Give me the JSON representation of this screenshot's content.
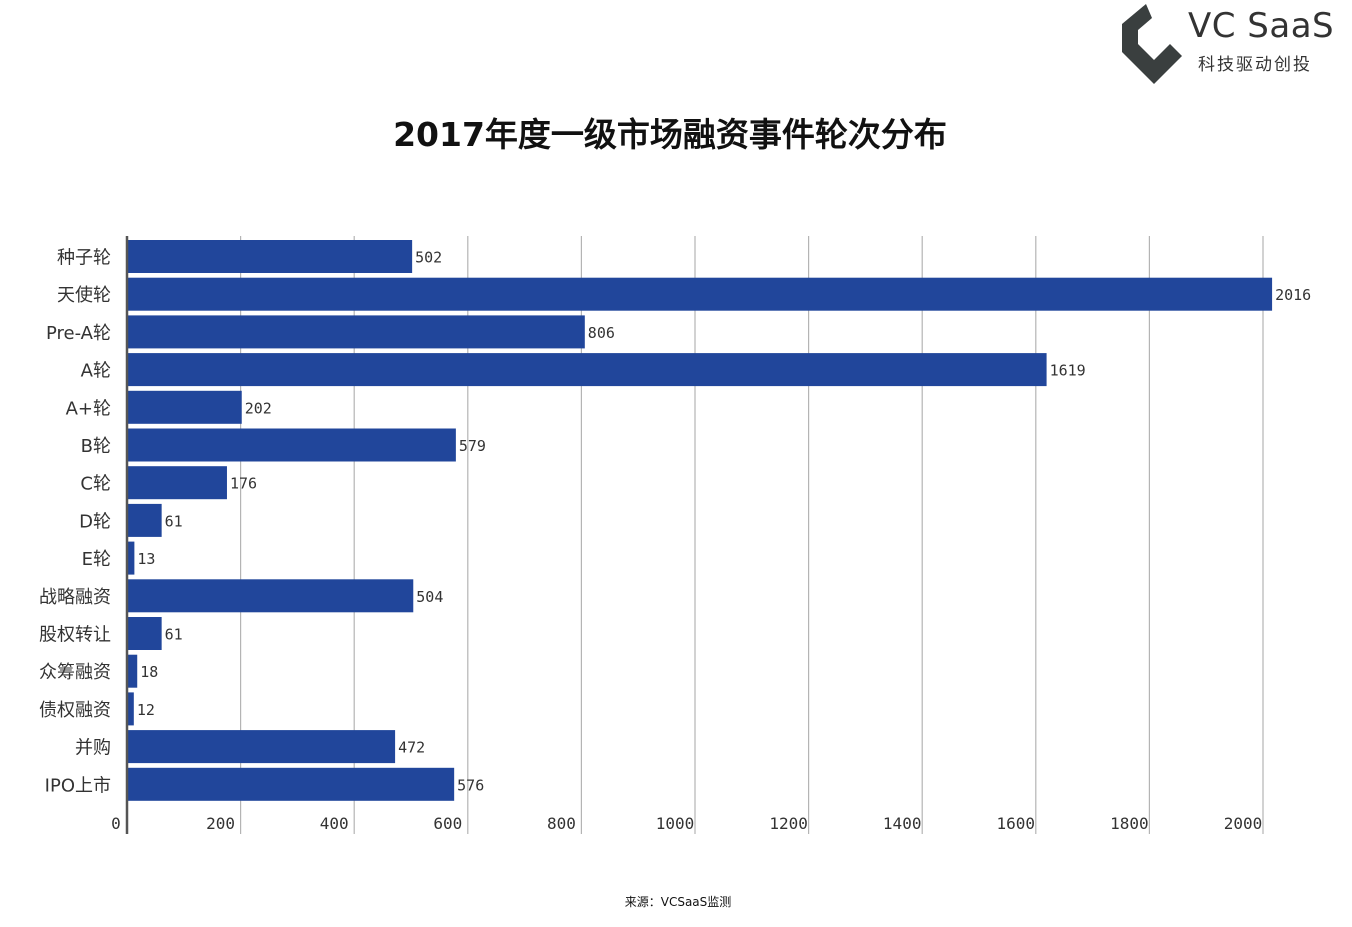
{
  "logo": {
    "name": "VC SaaS",
    "tagline": "科技驱动创投",
    "icon": "vc-saas-logo-icon"
  },
  "colors": {
    "bar": "#21469b",
    "grid": "#b4b4b4",
    "axis": "#555555",
    "text": "#333333",
    "logo": "#3a3f3f"
  },
  "chart_data": {
    "type": "bar",
    "orientation": "horizontal",
    "title": "2017年度一级市场融资事件轮次分布",
    "categories": [
      "种子轮",
      "天使轮",
      "Pre-A轮",
      "A轮",
      "A+轮",
      "B轮",
      "C轮",
      "D轮",
      "E轮",
      "战略融资",
      "股权转让",
      "众筹融资",
      "债权融资",
      "并购",
      "IPO上市"
    ],
    "values": [
      502,
      2016,
      806,
      1619,
      202,
      579,
      176,
      61,
      13,
      504,
      61,
      18,
      12,
      472,
      576
    ],
    "xlim": [
      0,
      2000
    ],
    "xticks": [
      0,
      200,
      400,
      600,
      800,
      1000,
      1200,
      1400,
      1600,
      1800,
      2000
    ],
    "grid": true,
    "legend": "none",
    "xlabel": "",
    "ylabel": ""
  },
  "source": "来源：VCSaaS监测"
}
